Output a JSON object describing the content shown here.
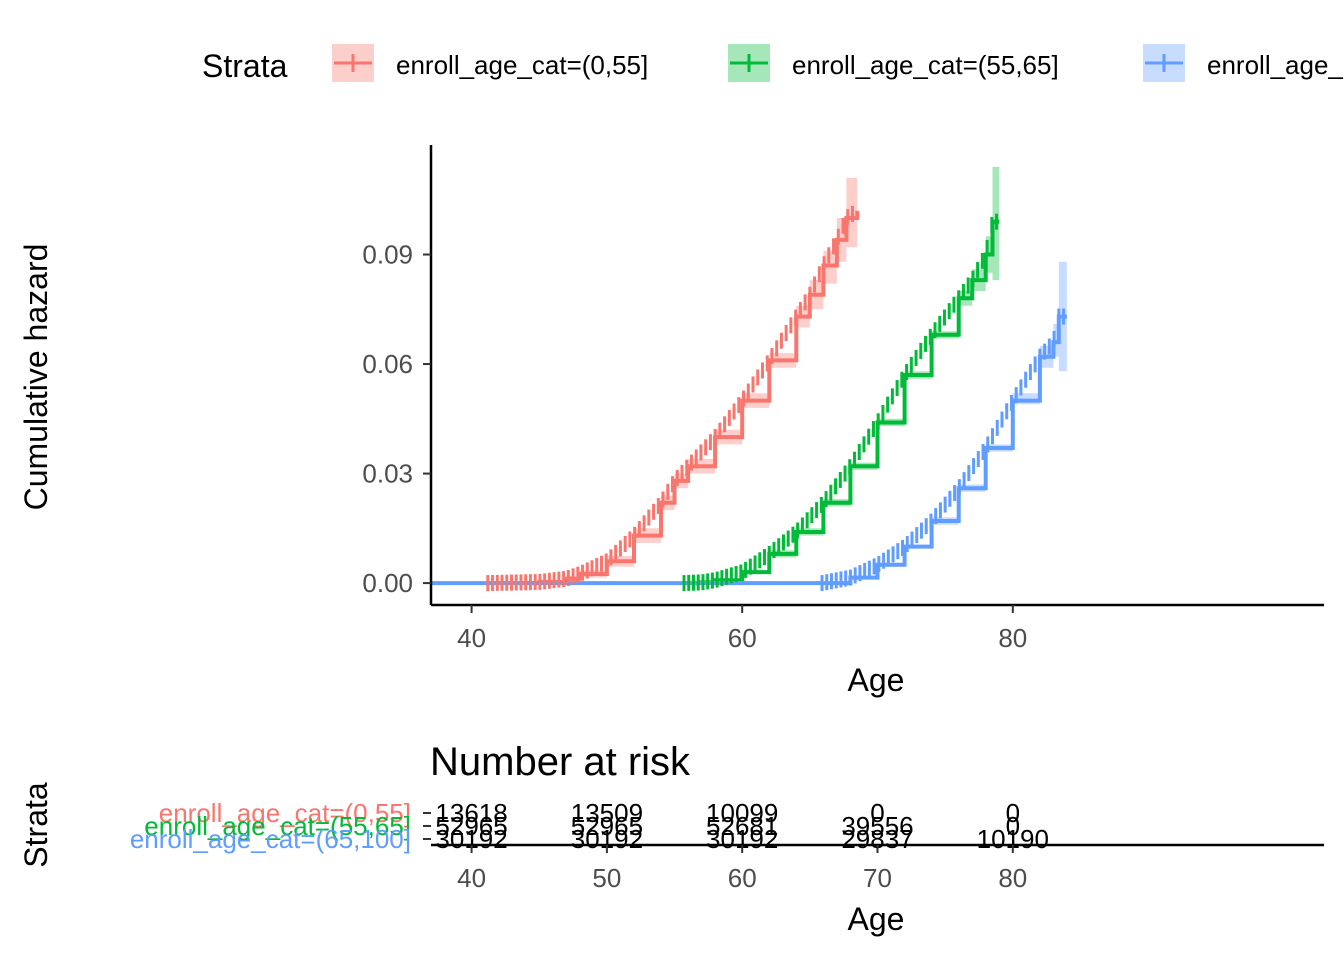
{
  "legend": {
    "title": "Strata",
    "entries": [
      "enroll_age_cat=(0,55]",
      "enroll_age_cat=(55,65]",
      "enroll_age_cat=(65,100]"
    ]
  },
  "colors": {
    "s1": "#F8766D",
    "s2": "#00BA38",
    "s3": "#619CFF",
    "axis": "#000000"
  },
  "chart_data": [
    {
      "type": "line",
      "step": true,
      "xlabel": "Age",
      "ylabel": "Cumulative hazard",
      "xlim": [
        37,
        103
      ],
      "ylim": [
        -0.006,
        0.12
      ],
      "xticks": [
        40,
        60,
        80
      ],
      "yticks": [
        0.0,
        0.03,
        0.06,
        0.09
      ],
      "ytick_labels": [
        "0.00",
        "0.03",
        "0.06",
        "0.09"
      ],
      "grid": false,
      "legend_position": "top",
      "series": [
        {
          "name": "enroll_age_cat=(0,55]",
          "color": "#F8766D",
          "x": [
            41.2,
            45,
            47,
            48,
            50,
            52,
            54,
            55,
            56,
            58,
            60,
            62,
            64,
            65,
            66,
            67,
            67.7,
            68.5
          ],
          "y": [
            0,
            0.0003,
            0.0012,
            0.0025,
            0.006,
            0.013,
            0.022,
            0.028,
            0.032,
            0.04,
            0.05,
            0.061,
            0.073,
            0.079,
            0.087,
            0.094,
            0.1,
            0.102
          ],
          "ci_lower": [
            0,
            0,
            0.0005,
            0.0015,
            0.0045,
            0.011,
            0.02,
            0.026,
            0.03,
            0.038,
            0.048,
            0.059,
            0.07,
            0.075,
            0.082,
            0.088,
            0.092,
            0.092
          ],
          "ci_upper": [
            0,
            0.0008,
            0.002,
            0.0035,
            0.0075,
            0.015,
            0.024,
            0.03,
            0.034,
            0.042,
            0.052,
            0.063,
            0.076,
            0.083,
            0.091,
            0.1,
            0.111,
            0.111
          ]
        },
        {
          "name": "enroll_age_cat=(55,65]",
          "color": "#00BA38",
          "x": [
            55.7,
            57,
            58,
            60,
            62,
            64,
            66,
            68,
            70,
            72,
            74,
            76,
            77,
            78,
            78.5,
            79
          ],
          "y": [
            0,
            0.0002,
            0.0008,
            0.003,
            0.008,
            0.014,
            0.022,
            0.032,
            0.044,
            0.057,
            0.068,
            0.078,
            0.083,
            0.09,
            0.099,
            0.099
          ],
          "ci_lower": [
            0,
            0,
            0.0004,
            0.0025,
            0.007,
            0.013,
            0.021,
            0.031,
            0.043,
            0.056,
            0.067,
            0.076,
            0.08,
            0.085,
            0.083,
            0.083
          ],
          "ci_upper": [
            0,
            0.0005,
            0.0012,
            0.0035,
            0.009,
            0.015,
            0.023,
            0.033,
            0.045,
            0.058,
            0.069,
            0.08,
            0.086,
            0.095,
            0.114,
            0.114
          ]
        },
        {
          "name": "enroll_age_cat=(65,100]",
          "color": "#619CFF",
          "x": [
            37,
            65.9,
            68,
            70,
            72,
            74,
            76,
            78,
            80,
            82,
            83,
            83.4,
            84
          ],
          "y": [
            0,
            0,
            0.0015,
            0.005,
            0.01,
            0.017,
            0.026,
            0.037,
            0.05,
            0.062,
            0.066,
            0.073,
            0.073
          ],
          "ci_lower": [
            0,
            0,
            0.001,
            0.0045,
            0.0095,
            0.016,
            0.025,
            0.036,
            0.049,
            0.059,
            0.062,
            0.058,
            0.058
          ],
          "ci_upper": [
            0,
            0,
            0.002,
            0.0055,
            0.0105,
            0.018,
            0.027,
            0.038,
            0.052,
            0.065,
            0.071,
            0.088,
            0.088
          ]
        }
      ]
    },
    {
      "type": "table",
      "title": "Number at risk",
      "xlabel": "Age",
      "ylabel": "Strata",
      "xticks": [
        40,
        50,
        60,
        70,
        80
      ],
      "rows": [
        {
          "name": "enroll_age_cat=(0,55]",
          "color": "#F8766D",
          "values": [
            "13618",
            "13509",
            "10099",
            "0",
            "0"
          ]
        },
        {
          "name": "enroll_age_cat=(55,65]",
          "color": "#00BA38",
          "values": [
            "52965",
            "52965",
            "52681",
            "39556",
            "0"
          ]
        },
        {
          "name": "enroll_age_cat=(65,100]",
          "color": "#619CFF",
          "values": [
            "30192",
            "30192",
            "30192",
            "29837",
            "10190"
          ]
        }
      ]
    }
  ]
}
